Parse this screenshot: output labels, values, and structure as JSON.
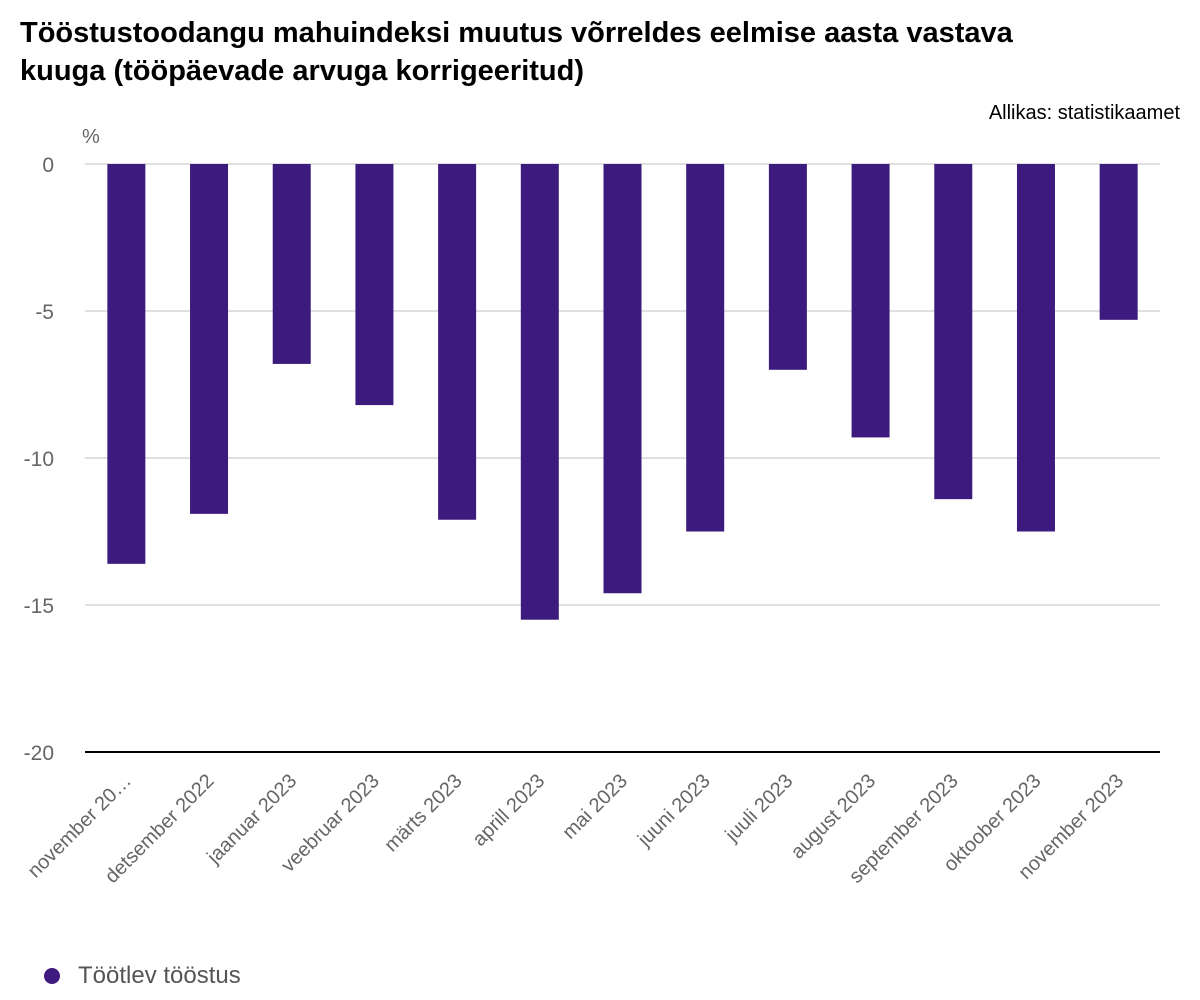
{
  "chart_data": {
    "type": "bar",
    "title": "Tööstustoodangu mahuindeksi muutus võrreldes eelmise aasta vastava kuuga (tööpäevade arvuga korrigeeritud)",
    "source": "Allikas: statistikaamet",
    "ylabel": "%",
    "xlabel": "",
    "ylim": [
      -20,
      0
    ],
    "yticks": [
      0,
      -5,
      -10,
      -15,
      -20
    ],
    "grid": true,
    "legend_position": "bottom-left",
    "categories": [
      "november 20…",
      "detsember 2022",
      "jaanuar 2023",
      "veebruar 2023",
      "märts 2023",
      "aprill 2023",
      "mai 2023",
      "juuni 2023",
      "juuli 2023",
      "august 2023",
      "september 2023",
      "oktoober 2023",
      "november 2023"
    ],
    "series": [
      {
        "name": "Töötlev tööstus",
        "color": "#3d1a7e",
        "values": [
          -13.6,
          -11.9,
          -6.8,
          -8.2,
          -12.1,
          -15.5,
          -14.6,
          -12.5,
          -7.0,
          -9.3,
          -11.4,
          -12.5,
          -5.3
        ]
      }
    ]
  }
}
